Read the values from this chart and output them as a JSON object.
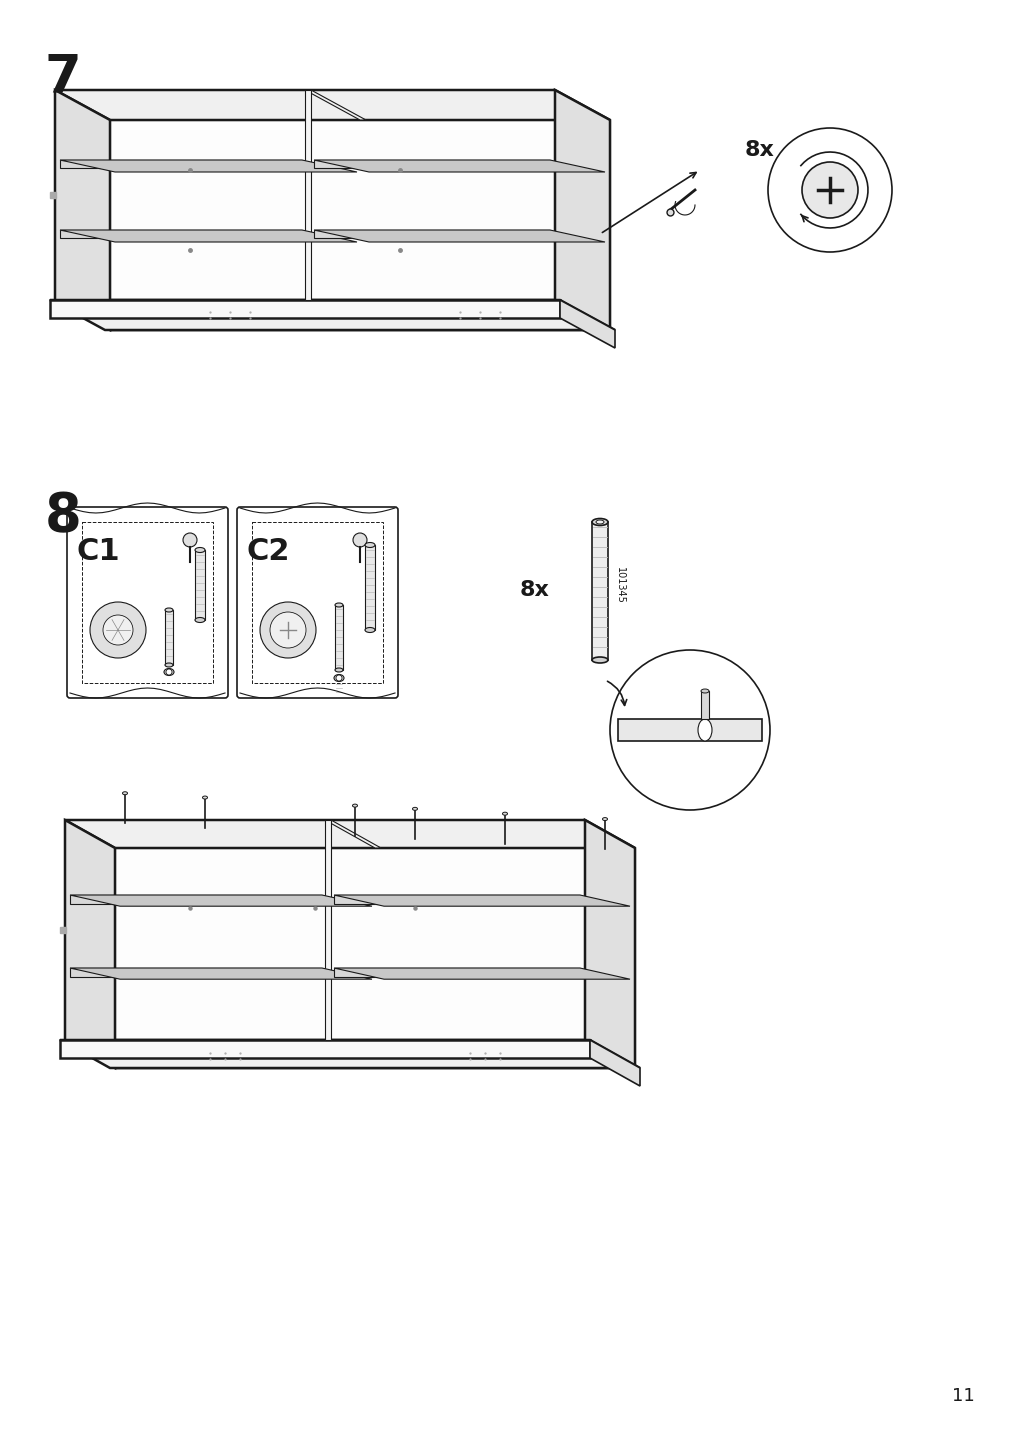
{
  "page_number": "11",
  "step7_label": "7",
  "step8_label": "8",
  "bg_color": "#ffffff",
  "line_color": "#1a1a1a",
  "part_c1_label": "C1",
  "part_c2_label": "C2",
  "qty_label_7": "8x",
  "qty_label_8": "8x",
  "part_number": "101345",
  "step7_label_fontsize": 38,
  "step8_label_fontsize": 38,
  "page_num_fontsize": 13,
  "fig_width": 10.12,
  "fig_height": 14.32,
  "dpi": 100
}
